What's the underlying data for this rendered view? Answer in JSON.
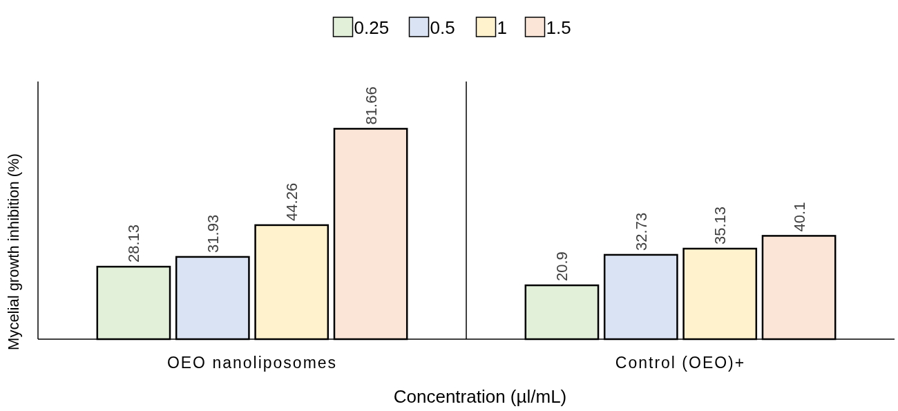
{
  "chart_data": {
    "type": "bar",
    "xlabel": "Concentration (µl/mL)",
    "ylabel": "Mycelial growth inhibition (%)",
    "categories": [
      "OEO nanoliposomes",
      "Control (OEO)+"
    ],
    "series": [
      {
        "name": "0.25",
        "color": "#e2f0d9",
        "values": [
          28.13,
          20.9
        ]
      },
      {
        "name": "0.5",
        "color": "#dae3f3",
        "values": [
          31.93,
          32.73
        ]
      },
      {
        "name": "1",
        "color": "#fff2cc",
        "values": [
          44.26,
          35.13
        ]
      },
      {
        "name": "1.5",
        "color": "#fbe5d6",
        "values": [
          81.66,
          40.1
        ]
      }
    ],
    "ylim": [
      0,
      100
    ],
    "tick_labels": "x",
    "data_labels": true,
    "legend": "top"
  }
}
